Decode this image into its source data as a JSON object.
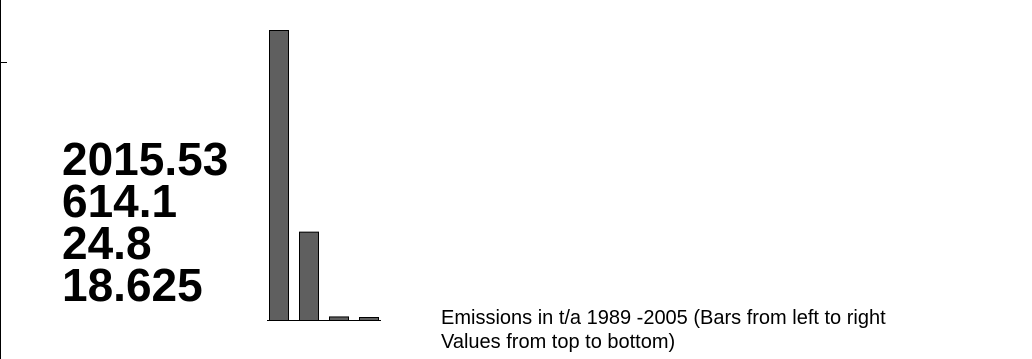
{
  "chart_data": {
    "type": "bar",
    "title": "",
    "xlabel": "",
    "ylabel": "",
    "categories": [
      "",
      "",
      "",
      ""
    ],
    "values": [
      2015.53,
      614.1,
      24.8,
      18.625
    ],
    "value_labels": [
      "2015.53",
      "614.1",
      "24.8",
      "18.625"
    ],
    "ylim": [
      0,
      2015.53
    ],
    "grid": false,
    "caption_lines": [
      "Emissions in t/a 1989 -2005 (Bars from left to right",
      "Values from top to bottom)"
    ],
    "colors": {
      "bar_fill": "#5f5f5f",
      "bar_stroke": "#000000",
      "axis": "#000000"
    }
  }
}
